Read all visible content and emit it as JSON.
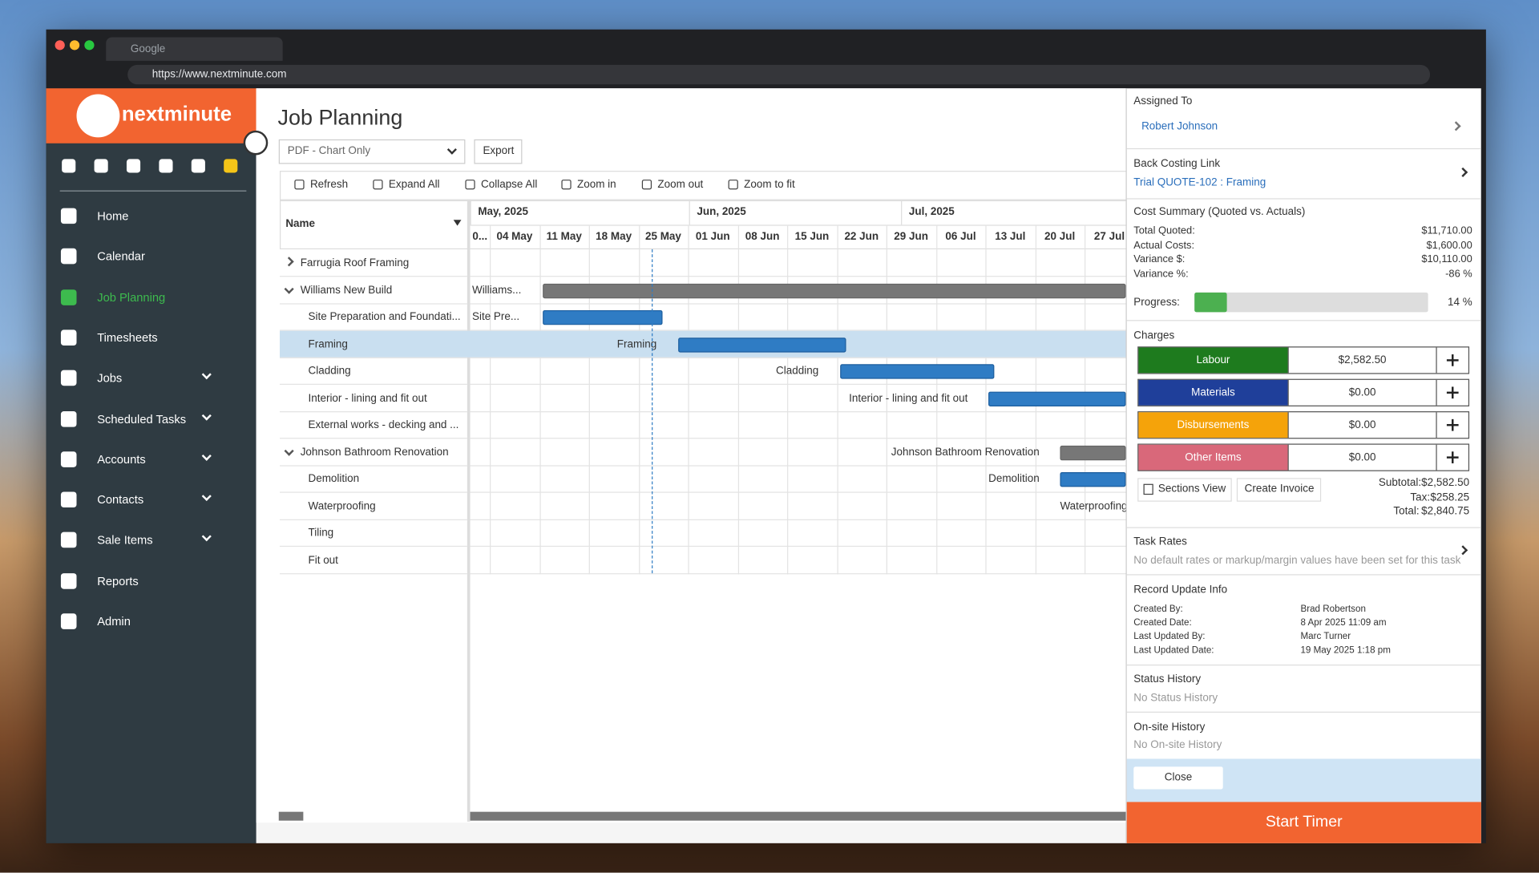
{
  "browser": {
    "tab_title": "Google",
    "url": "https://www.nextminute.com"
  },
  "sidebar": {
    "logo": "nextminute",
    "nav": [
      "Home",
      "Calendar",
      "Job Planning",
      "Timesheets",
      "Jobs",
      "Scheduled Tasks",
      "Accounts",
      "Contacts",
      "Sale Items",
      "Reports",
      "Admin"
    ]
  },
  "main": {
    "title": "Job Planning",
    "export_format": "PDF - Chart Only",
    "export_button": "Export",
    "toolbar": [
      "Refresh",
      "Expand All",
      "Collapse All",
      "Zoom in",
      "Zoom out",
      "Zoom to fit"
    ]
  },
  "gantt": {
    "name_header": "Name",
    "months": [
      "May, 2025",
      "Jun, 2025",
      "Jul, 2025"
    ],
    "weeks": [
      "0...",
      "04 May",
      "11 May",
      "18 May",
      "25 May",
      "01 Jun",
      "08 Jun",
      "15 Jun",
      "22 Jun",
      "29 Jun",
      "06 Jul",
      "13 Jul",
      "20 Jul",
      "27 Jul"
    ],
    "tasks": [
      {
        "name": "Farrugia Roof Framing"
      },
      {
        "name": "Williams New Build",
        "bar_label": "Williams..."
      },
      {
        "name": "Site Preparation and Foundati...",
        "bar_label": "Site Pre..."
      },
      {
        "name": "Framing",
        "bar_label": "Framing"
      },
      {
        "name": "Cladding",
        "bar_label": "Cladding"
      },
      {
        "name": "Interior - lining and fit out",
        "bar_label": "Interior - lining and fit out"
      },
      {
        "name": "External works - decking and ..."
      },
      {
        "name": "Johnson Bathroom Renovation",
        "bar_label": "Johnson Bathroom Renovation"
      },
      {
        "name": "Demolition",
        "bar_label": "Demolition"
      },
      {
        "name": "Waterproofing",
        "bar_label": "Waterproofing"
      },
      {
        "name": "Tiling"
      },
      {
        "name": "Fit out"
      }
    ]
  },
  "panel": {
    "assigned_to": {
      "label": "Assigned To",
      "value": "Robert Johnson"
    },
    "back_costing": {
      "label": "Back Costing Link",
      "value": "Trial QUOTE-102 : Framing"
    },
    "cost_summary": {
      "title": "Cost Summary (Quoted vs. Actuals)",
      "rows": [
        [
          "Total Quoted:",
          "$11,710.00"
        ],
        [
          "Actual Costs:",
          "$1,600.00"
        ],
        [
          "Variance $:",
          "$10,110.00"
        ],
        [
          "Variance %:",
          "-86 %"
        ]
      ]
    },
    "progress": {
      "label": "Progress:",
      "value": 14,
      "value_label": "14 %"
    },
    "charges": {
      "title": "Charges",
      "rows": [
        [
          "Labour",
          "$2,582.50"
        ],
        [
          "Materials",
          "$0.00"
        ],
        [
          "Disbursements",
          "$0.00"
        ],
        [
          "Other Items",
          "$0.00"
        ]
      ],
      "buttons": [
        "Sections View",
        "Create Invoice"
      ],
      "totals": [
        [
          "Subtotal:",
          "$2,582.50"
        ],
        [
          "Tax:",
          "$258.25"
        ],
        [
          "Total:",
          "$2,840.75"
        ]
      ]
    },
    "task_rates": {
      "title": "Task Rates",
      "note": "No default rates or markup/margin values have been set for this task"
    },
    "record": {
      "title": "Record Update Info",
      "rows": [
        [
          "Created By:",
          "Brad Robertson"
        ],
        [
          "Created Date:",
          "8 Apr 2025 11:09 am"
        ],
        [
          "Last Updated By:",
          "Marc Turner"
        ],
        [
          "Last Updated Date:",
          "19 May 2025 1:18 pm"
        ]
      ]
    },
    "status_history": {
      "title": "Status History",
      "note": "No Status History"
    },
    "onsite_history": {
      "title": "On-site History",
      "note": "No On-site History"
    },
    "close": "Close",
    "start_timer": "Start Timer"
  }
}
